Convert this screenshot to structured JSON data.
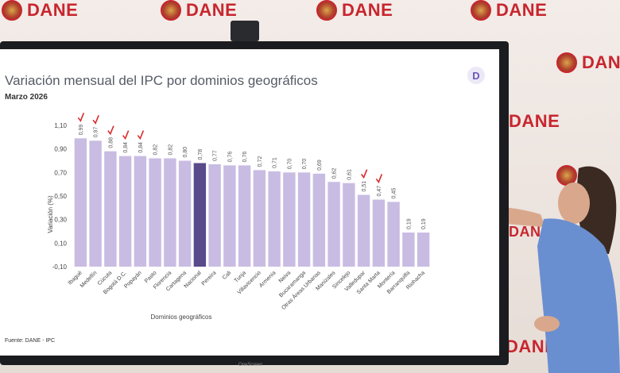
{
  "wall": {
    "logo_text": "DANE",
    "logo_color": "#c8262e"
  },
  "display": {
    "brand": "OneScreen"
  },
  "slide": {
    "source_text": "Fuente: DANE - IPC",
    "badge_letter": "D"
  },
  "chart_data": {
    "type": "bar",
    "title": "Variación mensual del IPC por dominios geográficos",
    "subtitle": "Marzo 2026",
    "xlabel": "Dominios geográficos",
    "ylabel": "Variación (%)",
    "ylim": [
      -0.1,
      1.1
    ],
    "yticks": [
      "-0,10",
      "0,10",
      "0,30",
      "0,50",
      "0,70",
      "0,90",
      "1,10"
    ],
    "ytick_values": [
      -0.1,
      0.1,
      0.3,
      0.5,
      0.7,
      0.9,
      1.1
    ],
    "grid": false,
    "legend": "none",
    "bar_color": "#c9bce3",
    "highlight_color": "#5a4a8a",
    "highlight_category": "Nacional",
    "marker_color": "#d92b2b",
    "categories": [
      "Ibagué",
      "Medellín",
      "Cúcuta",
      "Bogotá D.C.",
      "Popayán",
      "Pasto",
      "Florencia",
      "Cartagena",
      "Nacional",
      "Pereira",
      "Cali",
      "Tunja",
      "Villavicencio",
      "Armenia",
      "Neiva",
      "Bucaramanga",
      "Otras Áreas Urbanas",
      "Manizales",
      "Sincelejo",
      "Valledupar",
      "Santa Marta",
      "Montería",
      "Barranquilla",
      "Riohacha"
    ],
    "values": [
      0.99,
      0.97,
      0.88,
      0.84,
      0.84,
      0.82,
      0.82,
      0.8,
      0.78,
      0.77,
      0.76,
      0.76,
      0.72,
      0.71,
      0.7,
      0.7,
      0.69,
      0.62,
      0.61,
      0.51,
      0.47,
      0.45,
      0.19,
      0.19
    ],
    "value_labels": [
      "0,99",
      "0,97",
      "0,88",
      "0,84",
      "0,84",
      "0,82",
      "0,82",
      "0,80",
      "0,78",
      "0,77",
      "0,76",
      "0,76",
      "0,72",
      "0,71",
      "0,70",
      "0,70",
      "0,69",
      "0,62",
      "0,61",
      "0,51",
      "0,47",
      "0,45",
      "0,19",
      "0,19"
    ],
    "check_marks": [
      "Ibagué",
      "Medellín",
      "Cúcuta",
      "Bogotá D.C.",
      "Popayán",
      "Valledupar",
      "Santa Marta"
    ]
  }
}
